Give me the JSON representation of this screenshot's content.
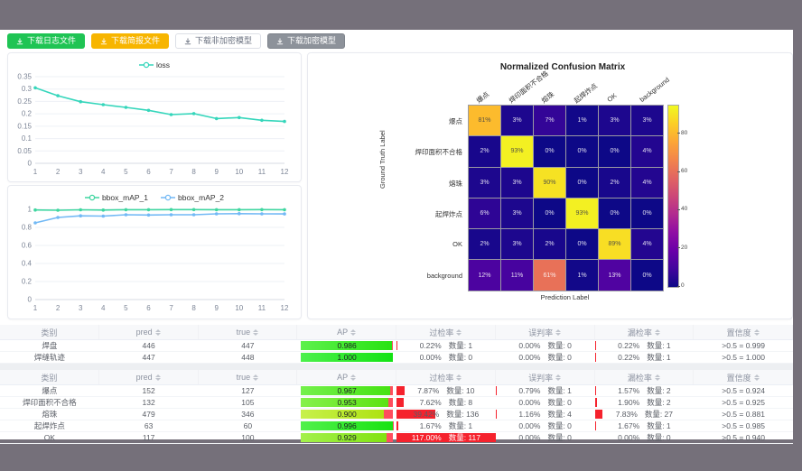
{
  "colors": {
    "outer_bg": "#75707a",
    "loss_line": "#35d6bb",
    "map1_line": "#3fd6a0",
    "map2_line": "#72b9f5",
    "bar_red": "#f5222d",
    "btn_green": "#1fc454",
    "btn_orange": "#f7b500",
    "btn_gray": "#8d929a"
  },
  "toolbar": {
    "buttons": [
      {
        "label": "下载日志文件",
        "variant": "green"
      },
      {
        "label": "下载简报文件",
        "variant": "orange"
      },
      {
        "label": "下载非加密模型",
        "variant": "plain"
      },
      {
        "label": "下载加密模型",
        "variant": "gray"
      }
    ]
  },
  "chart_data": [
    {
      "type": "line",
      "title": "loss",
      "x": [
        1,
        2,
        3,
        4,
        5,
        6,
        7,
        8,
        9,
        10,
        11,
        12
      ],
      "series": [
        {
          "name": "loss",
          "color": "#35d6bb",
          "values": [
            0.305,
            0.273,
            0.249,
            0.237,
            0.226,
            0.214,
            0.197,
            0.201,
            0.181,
            0.185,
            0.174,
            0.169
          ]
        }
      ],
      "ylim": [
        0,
        0.35
      ],
      "yticks": [
        0,
        0.05,
        0.1,
        0.15,
        0.2,
        0.25,
        0.3,
        0.35
      ],
      "grid": true,
      "legend_position": "top"
    },
    {
      "type": "line",
      "title": "bbox_mAP",
      "x": [
        1,
        2,
        3,
        4,
        5,
        6,
        7,
        8,
        9,
        10,
        11,
        12
      ],
      "series": [
        {
          "name": "bbox_mAP_1",
          "color": "#3fd6a0",
          "values": [
            0.993,
            0.99,
            0.995,
            0.992,
            0.996,
            0.996,
            0.997,
            0.997,
            0.996,
            0.996,
            0.997,
            0.996
          ]
        },
        {
          "name": "bbox_mAP_2",
          "color": "#72b9f5",
          "values": [
            0.85,
            0.91,
            0.928,
            0.925,
            0.94,
            0.937,
            0.94,
            0.94,
            0.95,
            0.952,
            0.95,
            0.949
          ]
        }
      ],
      "ylim": [
        0,
        1
      ],
      "yticks": [
        0,
        0.2,
        0.4,
        0.6,
        0.8,
        1
      ],
      "grid": true,
      "legend_position": "top"
    },
    {
      "type": "heatmap",
      "title": "Normalized Confusion Matrix",
      "xlabel": "Prediction Label",
      "ylabel": "Ground Truth Label",
      "labels": [
        "爆点",
        "焊印面积不合格",
        "熔珠",
        "起焊炸点",
        "OK",
        "background"
      ],
      "matrix": [
        [
          81,
          3,
          7,
          1,
          3,
          3
        ],
        [
          2,
          93,
          0,
          0,
          0,
          4
        ],
        [
          3,
          3,
          90,
          0,
          2,
          4
        ],
        [
          6,
          3,
          0,
          93,
          0,
          0
        ],
        [
          2,
          3,
          2,
          0,
          89,
          4
        ],
        [
          12,
          11,
          61,
          1,
          13,
          0
        ]
      ],
      "unit": "%",
      "colormap": "plasma",
      "colorbar_ticks": [
        0,
        20,
        40,
        60,
        80
      ],
      "colorbar_max": 95
    }
  ],
  "tables": {
    "count_label": "数量:",
    "headers": [
      "类别",
      "pred",
      "true",
      "AP",
      "过检率",
      "误判率",
      "漏检率",
      "置信度"
    ],
    "sortable": [
      false,
      true,
      true,
      true,
      true,
      true,
      true,
      true
    ],
    "groups": [
      {
        "rows": [
          {
            "name": "焊盘",
            "pred": "446",
            "true": "447",
            "ap": 0.986,
            "over": 0.22,
            "over_n": "1",
            "mis": 0.0,
            "mis_n": "0",
            "miss": 0.22,
            "miss_n": "1",
            "conf": ">0.5 = 0.999"
          },
          {
            "name": "焊缝轨迹",
            "pred": "447",
            "true": "448",
            "ap": 1.0,
            "over": 0.0,
            "over_n": "0",
            "mis": 0.0,
            "mis_n": "0",
            "miss": 0.22,
            "miss_n": "1",
            "conf": ">0.5 = 1.000"
          }
        ]
      },
      {
        "rows": [
          {
            "name": "爆点",
            "pred": "152",
            "true": "127",
            "ap": 0.967,
            "over": 7.87,
            "over_n": "10",
            "mis": 0.79,
            "mis_n": "1",
            "miss": 1.57,
            "miss_n": "2",
            "conf": ">0.5 = 0.924"
          },
          {
            "name": "焊印面积不合格",
            "pred": "132",
            "true": "105",
            "ap": 0.953,
            "over": 7.62,
            "over_n": "8",
            "mis": 0.0,
            "mis_n": "0",
            "miss": 1.9,
            "miss_n": "2",
            "conf": ">0.5 = 0.925"
          },
          {
            "name": "熔珠",
            "pred": "479",
            "true": "346",
            "ap": 0.9,
            "over": 39.42,
            "over_n": "136",
            "mis": 1.16,
            "mis_n": "4",
            "miss": 7.83,
            "miss_n": "27",
            "conf": ">0.5 = 0.881"
          },
          {
            "name": "起焊炸点",
            "pred": "63",
            "true": "60",
            "ap": 0.996,
            "over": 1.67,
            "over_n": "1",
            "mis": 0.0,
            "mis_n": "0",
            "miss": 1.67,
            "miss_n": "1",
            "conf": ">0.5 = 0.985"
          },
          {
            "name": "OK",
            "pred": "117",
            "true": "100",
            "ap": 0.929,
            "over": 117.0,
            "over_n": "117",
            "mis": 0.0,
            "mis_n": "0",
            "miss": 0.0,
            "miss_n": "0",
            "conf": ">0.5 = 0.940"
          }
        ]
      }
    ]
  }
}
